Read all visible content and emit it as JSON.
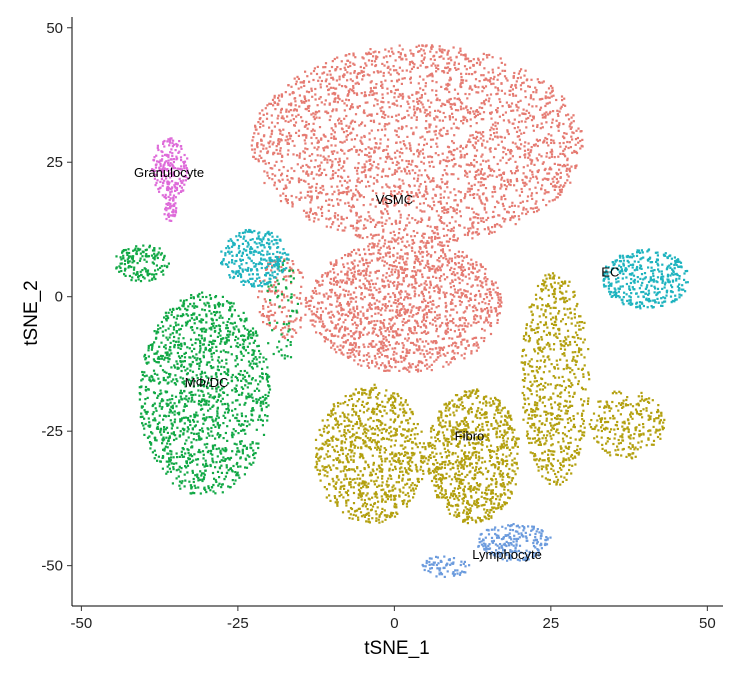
{
  "chart_data": {
    "type": "scatter",
    "xlabel": "tSNE_1",
    "ylabel": "tSNE_2",
    "xlim": [
      -51.5,
      52.5
    ],
    "ylim": [
      -57.5,
      52
    ],
    "x_ticks": [
      -50,
      -25,
      0,
      25,
      50
    ],
    "y_ticks": [
      -50,
      -25,
      0,
      25,
      50
    ],
    "grid": false,
    "legend": "none",
    "clusters": [
      {
        "name": "VSMC",
        "color": "#E57B72",
        "label_pos": [
          0,
          18
        ],
        "regions": [
          {
            "x": [
              -23,
              30
            ],
            "y": [
              10,
              47
            ],
            "n": 2600
          },
          {
            "x": [
              -14,
              17
            ],
            "y": [
              -14,
              11
            ],
            "n": 1500
          },
          {
            "x": [
              -22,
              -14
            ],
            "y": [
              -8,
              8
            ],
            "n": 150
          }
        ]
      },
      {
        "name": "Fibro",
        "color": "#B3A00F",
        "label_pos": [
          12,
          -26
        ],
        "regions": [
          {
            "x": [
              -13,
              5
            ],
            "y": [
              -42,
              -16
            ],
            "n": 900
          },
          {
            "x": [
              5,
              20
            ],
            "y": [
              -42,
              -17
            ],
            "n": 900
          },
          {
            "x": [
              20,
              31
            ],
            "y": [
              -35,
              5
            ],
            "n": 700
          },
          {
            "x": [
              31,
              43
            ],
            "y": [
              -30,
              -17
            ],
            "n": 250
          }
        ]
      },
      {
        "name": "MΦ/DC",
        "color": "#11A845",
        "label_pos": [
          -30,
          -16
        ],
        "regions": [
          {
            "x": [
              -41,
              -20
            ],
            "y": [
              -37,
              1
            ],
            "n": 1400
          },
          {
            "x": [
              -45,
              -36
            ],
            "y": [
              3,
              10
            ],
            "n": 150
          },
          {
            "x": [
              -21,
              -15
            ],
            "y": [
              -12,
              7
            ],
            "n": 60
          }
        ]
      },
      {
        "name": "Granulocyte",
        "color": "#DE6BD9",
        "label_pos": [
          -36,
          23
        ],
        "regions": [
          {
            "x": [
              -39,
              -33
            ],
            "y": [
              18,
              30
            ],
            "n": 220
          },
          {
            "x": [
              -37,
              -35
            ],
            "y": [
              14,
              19
            ],
            "n": 40
          }
        ]
      },
      {
        "name": "EC",
        "color": "#1FB3BF",
        "label_pos": [
          34.5,
          4.5
        ],
        "regions": [
          {
            "x": [
              -28,
              -17
            ],
            "y": [
              2,
              13
            ],
            "n": 300
          },
          {
            "x": [
              33,
              47
            ],
            "y": [
              -2,
              9
            ],
            "n": 380
          }
        ]
      },
      {
        "name": "Lymphocyte",
        "color": "#6B9BDD",
        "label_pos": [
          18,
          -48
        ],
        "regions": [
          {
            "x": [
              13,
              25
            ],
            "y": [
              -49,
              -42
            ],
            "n": 220
          },
          {
            "x": [
              4,
              12
            ],
            "y": [
              -52,
              -48
            ],
            "n": 70
          }
        ]
      }
    ]
  }
}
